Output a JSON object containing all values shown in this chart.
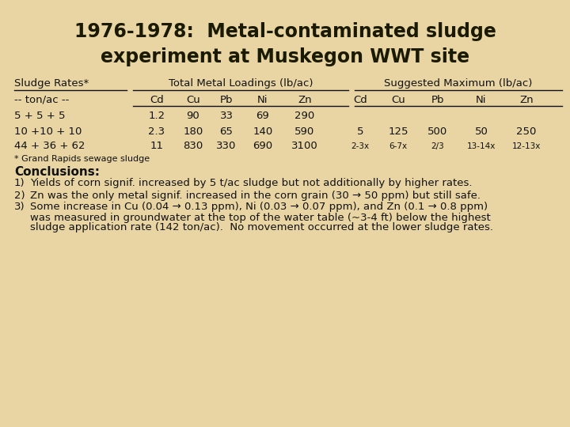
{
  "title_line1": "1976-1978:  Metal-contaminated sludge",
  "title_line2": "experiment at Muskegon WWT site",
  "bg_color": "#e8d5a3",
  "title_color": "#1a1a00",
  "text_color": "#111111",
  "title_fontsize": 17,
  "header_fontsize": 9.5,
  "body_fontsize": 9.5,
  "small_fontsize": 7.5,
  "conclusions_label_fontsize": 11,
  "footnote_fontsize": 8,
  "table_header1": "Sludge Rates*",
  "table_header2": "Total Metal Loadings (lb/ac)",
  "table_header3": "Suggested Maximum (lb/ac)",
  "col_header": [
    "Cd",
    "Cu",
    "Pb",
    "Ni",
    "Zn",
    "Cd",
    "Cu",
    "Pb",
    "Ni",
    "Zn"
  ],
  "rate_label": "-- ton/ac --",
  "rows": [
    {
      "rate": "5 + 5 + 5",
      "tml": [
        "1.2",
        "90",
        "33",
        "69",
        "290",
        "",
        "",
        "",
        "",
        ""
      ]
    },
    {
      "rate": "10 +10 + 10",
      "tml": [
        "2.3",
        "180",
        "65",
        "140",
        "590",
        "5",
        "125",
        "500",
        "50",
        "250"
      ]
    },
    {
      "rate": "44 + 36 + 62",
      "tml": [
        "11",
        "830",
        "330",
        "690",
        "3100",
        "2-3x",
        "6-7x",
        "2/3",
        "13-14x",
        "12-13x"
      ]
    }
  ],
  "footnote": "* Grand Rapids sewage sludge",
  "conclusions_label": "Conclusions:",
  "conclusion1": "Yields of corn signif. increased by 5 t/ac sludge but not additionally by higher rates.",
  "conclusion2": "Zn was the only metal signif. increased in the corn grain (30 → 50 ppm) but still safe.",
  "conclusion3a": "Some increase in Cu (0.04 → 0.13 ppm), Ni (0.03 → 0.07 ppm), and Zn (0.1 → 0.8 ppm)",
  "conclusion3b": "was measured in groundwater at the top of the water table (~3-4 ft) below the highest",
  "conclusion3c": "sludge application rate (142 ton/ac).  No movement occurred at the lower sludge rates."
}
